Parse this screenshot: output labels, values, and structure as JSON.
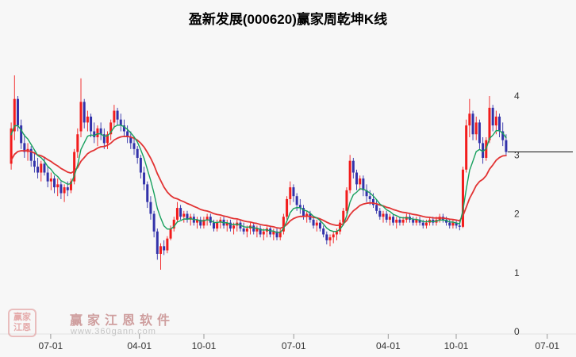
{
  "title": "盈新发展(000620)赢家周乾坤K线",
  "watermark": {
    "logo_line1": "赢家",
    "logo_line2": "江恩",
    "brand": "赢家江恩软件",
    "url": "www.360gann.com"
  },
  "colors": {
    "up": "#f21c1c",
    "down": "#3232aa",
    "ma_fast": "#18a05e",
    "ma_slow": "#e23333",
    "marker": "#111111",
    "axis_text": "#333333",
    "tick": "#999999",
    "baseline": "#e3e3e3",
    "background": "#f7f7f7"
  },
  "chart_data": {
    "type": "candlestick",
    "title": "盈新发展(000620)赢家周乾坤K线",
    "ylim": [
      0,
      4.5
    ],
    "grid": false,
    "y_axis": {
      "values": [
        4,
        3,
        2,
        1,
        0
      ]
    },
    "x_axis": {
      "labels": [
        "07-01",
        "04-01",
        "10-01",
        "07-01",
        "04-01",
        "10-01",
        "07-01"
      ],
      "fractions": [
        0.088,
        0.242,
        0.354,
        0.51,
        0.674,
        0.792,
        0.95
      ]
    },
    "ma_periods": [
      7,
      20
    ],
    "last_close_line": 3.05,
    "ohlc": [
      [
        2.85,
        3.55,
        2.75,
        3.45
      ],
      [
        3.4,
        4.35,
        3.25,
        3.95
      ],
      [
        3.95,
        4.0,
        3.4,
        3.5
      ],
      [
        3.5,
        3.6,
        3.1,
        3.2
      ],
      [
        3.2,
        3.35,
        2.95,
        3.05
      ],
      [
        3.05,
        3.2,
        2.9,
        3.1
      ],
      [
        3.1,
        3.15,
        2.8,
        2.9
      ],
      [
        2.9,
        3.05,
        2.7,
        2.8
      ],
      [
        2.8,
        2.95,
        2.6,
        2.7
      ],
      [
        2.7,
        2.9,
        2.55,
        2.85
      ],
      [
        2.85,
        2.95,
        2.65,
        2.7
      ],
      [
        2.7,
        2.8,
        2.45,
        2.55
      ],
      [
        2.55,
        2.7,
        2.4,
        2.6
      ],
      [
        2.6,
        2.65,
        2.35,
        2.45
      ],
      [
        2.45,
        2.6,
        2.3,
        2.5
      ],
      [
        2.5,
        2.55,
        2.25,
        2.35
      ],
      [
        2.35,
        2.5,
        2.2,
        2.45
      ],
      [
        2.45,
        2.55,
        2.3,
        2.4
      ],
      [
        2.4,
        2.6,
        2.35,
        2.55
      ],
      [
        2.55,
        3.1,
        2.5,
        3.05
      ],
      [
        3.05,
        3.45,
        2.95,
        3.35
      ],
      [
        3.4,
        4.3,
        3.3,
        3.9
      ],
      [
        3.9,
        3.95,
        3.45,
        3.55
      ],
      [
        3.55,
        3.75,
        3.4,
        3.65
      ],
      [
        3.65,
        3.7,
        3.3,
        3.4
      ],
      [
        3.4,
        3.55,
        3.2,
        3.3
      ],
      [
        3.3,
        3.5,
        3.15,
        3.45
      ],
      [
        3.45,
        3.55,
        3.25,
        3.35
      ],
      [
        3.35,
        3.45,
        3.1,
        3.2
      ],
      [
        3.2,
        3.4,
        3.1,
        3.35
      ],
      [
        3.35,
        3.6,
        3.25,
        3.55
      ],
      [
        3.55,
        3.85,
        3.45,
        3.75
      ],
      [
        3.75,
        3.8,
        3.5,
        3.6
      ],
      [
        3.6,
        3.7,
        3.4,
        3.5
      ],
      [
        3.5,
        3.6,
        3.3,
        3.4
      ],
      [
        3.4,
        3.5,
        3.2,
        3.3
      ],
      [
        3.3,
        3.4,
        3.1,
        3.2
      ],
      [
        3.2,
        3.3,
        3.0,
        3.1
      ],
      [
        3.1,
        3.15,
        2.85,
        2.95
      ],
      [
        2.95,
        3.0,
        2.6,
        2.7
      ],
      [
        2.7,
        2.8,
        2.4,
        2.5
      ],
      [
        2.5,
        2.55,
        2.1,
        2.2
      ],
      [
        2.2,
        2.3,
        1.9,
        2.0
      ],
      [
        2.0,
        2.05,
        1.6,
        1.7
      ],
      [
        1.7,
        1.75,
        1.22,
        1.32
      ],
      [
        1.32,
        1.5,
        1.05,
        1.45
      ],
      [
        1.45,
        1.55,
        1.3,
        1.38
      ],
      [
        1.38,
        1.62,
        1.33,
        1.58
      ],
      [
        1.58,
        1.8,
        1.55,
        1.75
      ],
      [
        1.75,
        1.95,
        1.7,
        1.9
      ],
      [
        1.9,
        2.2,
        1.85,
        2.1
      ],
      [
        2.1,
        2.15,
        1.9,
        1.95
      ],
      [
        1.95,
        2.05,
        1.85,
        2.0
      ],
      [
        2.0,
        2.05,
        1.85,
        1.9
      ],
      [
        1.9,
        2.0,
        1.8,
        1.95
      ],
      [
        1.95,
        2.0,
        1.8,
        1.85
      ],
      [
        1.85,
        1.95,
        1.75,
        1.9
      ],
      [
        1.9,
        1.95,
        1.75,
        1.8
      ],
      [
        1.8,
        1.95,
        1.75,
        1.9
      ],
      [
        1.9,
        2.0,
        1.8,
        1.95
      ],
      [
        1.95,
        2.0,
        1.8,
        1.85
      ],
      [
        1.85,
        1.9,
        1.7,
        1.75
      ],
      [
        1.75,
        1.9,
        1.7,
        1.85
      ],
      [
        1.85,
        1.95,
        1.75,
        1.9
      ],
      [
        1.9,
        1.95,
        1.75,
        1.8
      ],
      [
        1.8,
        1.9,
        1.7,
        1.85
      ],
      [
        1.85,
        1.9,
        1.7,
        1.75
      ],
      [
        1.75,
        1.85,
        1.65,
        1.8
      ],
      [
        1.8,
        1.9,
        1.7,
        1.85
      ],
      [
        1.85,
        1.9,
        1.7,
        1.75
      ],
      [
        1.75,
        1.85,
        1.65,
        1.7
      ],
      [
        1.7,
        1.8,
        1.6,
        1.75
      ],
      [
        1.75,
        1.85,
        1.65,
        1.8
      ],
      [
        1.8,
        1.85,
        1.65,
        1.7
      ],
      [
        1.7,
        1.8,
        1.6,
        1.75
      ],
      [
        1.75,
        1.8,
        1.6,
        1.65
      ],
      [
        1.65,
        1.75,
        1.55,
        1.7
      ],
      [
        1.7,
        1.8,
        1.6,
        1.75
      ],
      [
        1.75,
        1.8,
        1.6,
        1.65
      ],
      [
        1.65,
        1.75,
        1.55,
        1.7
      ],
      [
        1.7,
        1.75,
        1.55,
        1.6
      ],
      [
        1.6,
        1.75,
        1.55,
        1.7
      ],
      [
        1.7,
        2.0,
        1.65,
        1.95
      ],
      [
        1.95,
        2.3,
        1.9,
        2.25
      ],
      [
        2.25,
        2.55,
        2.15,
        2.45
      ],
      [
        2.45,
        2.5,
        2.2,
        2.3
      ],
      [
        2.3,
        2.35,
        2.05,
        2.15
      ],
      [
        2.15,
        2.25,
        2.0,
        2.1
      ],
      [
        2.1,
        2.15,
        1.9,
        1.95
      ],
      [
        1.95,
        2.05,
        1.85,
        2.0
      ],
      [
        2.0,
        2.05,
        1.85,
        1.9
      ],
      [
        1.9,
        1.95,
        1.75,
        1.8
      ],
      [
        1.8,
        1.9,
        1.7,
        1.85
      ],
      [
        1.85,
        1.9,
        1.7,
        1.75
      ],
      [
        1.75,
        1.8,
        1.6,
        1.65
      ],
      [
        1.65,
        1.7,
        1.48,
        1.55
      ],
      [
        1.55,
        1.65,
        1.45,
        1.6
      ],
      [
        1.6,
        1.7,
        1.5,
        1.65
      ],
      [
        1.65,
        1.75,
        1.55,
        1.7
      ],
      [
        1.7,
        1.9,
        1.65,
        1.85
      ],
      [
        1.85,
        2.1,
        1.8,
        2.05
      ],
      [
        2.05,
        2.45,
        2.0,
        2.4
      ],
      [
        2.4,
        3.0,
        2.35,
        2.9
      ],
      [
        2.9,
        2.95,
        2.6,
        2.7
      ],
      [
        2.7,
        2.75,
        2.4,
        2.5
      ],
      [
        2.5,
        2.65,
        2.4,
        2.6
      ],
      [
        2.6,
        2.65,
        2.3,
        2.4
      ],
      [
        2.4,
        2.5,
        2.2,
        2.3
      ],
      [
        2.3,
        2.4,
        2.15,
        2.25
      ],
      [
        2.25,
        2.35,
        2.1,
        2.15
      ],
      [
        2.15,
        2.25,
        2.0,
        2.05
      ],
      [
        2.05,
        2.1,
        1.9,
        1.95
      ],
      [
        1.95,
        2.05,
        1.85,
        2.0
      ],
      [
        2.0,
        2.05,
        1.85,
        1.9
      ],
      [
        1.9,
        2.0,
        1.8,
        1.95
      ],
      [
        1.95,
        2.0,
        1.8,
        1.85
      ],
      [
        1.85,
        1.95,
        1.75,
        1.9
      ],
      [
        1.9,
        1.95,
        1.8,
        1.85
      ],
      [
        1.85,
        1.95,
        1.8,
        1.9
      ],
      [
        1.9,
        2.0,
        1.85,
        1.95
      ],
      [
        1.95,
        2.0,
        1.85,
        1.9
      ],
      [
        1.9,
        1.95,
        1.8,
        1.85
      ],
      [
        1.85,
        1.95,
        1.8,
        1.9
      ],
      [
        1.9,
        1.95,
        1.8,
        1.85
      ],
      [
        1.85,
        1.9,
        1.75,
        1.8
      ],
      [
        1.8,
        1.9,
        1.75,
        1.85
      ],
      [
        1.85,
        1.95,
        1.8,
        1.9
      ],
      [
        1.9,
        1.95,
        1.8,
        1.85
      ],
      [
        1.85,
        1.95,
        1.8,
        1.9
      ],
      [
        1.9,
        2.0,
        1.85,
        1.95
      ],
      [
        1.95,
        2.0,
        1.85,
        1.9
      ],
      [
        1.9,
        1.95,
        1.8,
        1.85
      ],
      [
        1.85,
        1.9,
        1.75,
        1.8
      ],
      [
        1.8,
        1.9,
        1.75,
        1.85
      ],
      [
        1.85,
        1.9,
        1.75,
        1.8
      ],
      [
        1.8,
        1.88,
        1.72,
        1.78
      ],
      [
        1.78,
        2.8,
        1.76,
        2.75
      ],
      [
        2.75,
        3.6,
        2.7,
        3.5
      ],
      [
        3.5,
        3.95,
        3.3,
        3.7
      ],
      [
        3.7,
        3.75,
        3.25,
        3.35
      ],
      [
        3.35,
        3.65,
        3.25,
        3.55
      ],
      [
        3.55,
        3.6,
        3.1,
        3.2
      ],
      [
        3.2,
        3.3,
        2.85,
        2.95
      ],
      [
        2.95,
        3.3,
        2.9,
        3.25
      ],
      [
        3.25,
        4.0,
        3.2,
        3.8
      ],
      [
        3.8,
        3.85,
        3.4,
        3.5
      ],
      [
        3.5,
        3.75,
        3.35,
        3.65
      ],
      [
        3.65,
        3.7,
        3.3,
        3.4
      ],
      [
        3.4,
        3.55,
        3.15,
        3.25
      ],
      [
        3.25,
        3.35,
        3.0,
        3.05
      ]
    ]
  }
}
